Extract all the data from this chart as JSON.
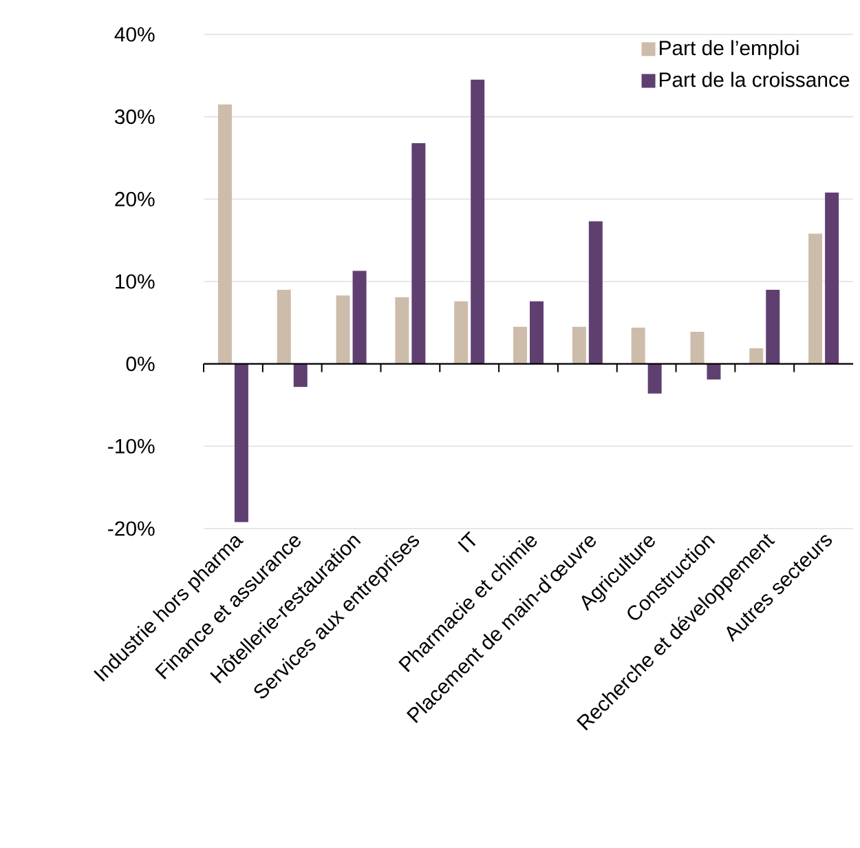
{
  "chart_data": {
    "type": "bar",
    "categories": [
      "Industrie hors pharma",
      "Finance et assurance",
      "Hôtellerie-restauration",
      "Services aux entreprises",
      "IT",
      "Pharmacie et chimie",
      "Placement de main-d’œuvre",
      "Agriculture",
      "Construction",
      "Recherche et développement",
      "Autres secteurs"
    ],
    "series": [
      {
        "name": "Part de l’emploi",
        "color": "#cdbcaa",
        "values": [
          31.5,
          9.0,
          8.3,
          8.1,
          7.6,
          4.5,
          4.5,
          4.4,
          3.9,
          1.9,
          15.8
        ]
      },
      {
        "name": "Part de la croissance",
        "color": "#5f3f70",
        "values": [
          -19.2,
          -2.8,
          11.3,
          26.8,
          34.5,
          7.6,
          17.3,
          -3.6,
          -1.9,
          9.0,
          20.8
        ]
      }
    ],
    "ylim": [
      -20,
      40
    ],
    "yticks": [
      {
        "value": -20,
        "label": "-20%"
      },
      {
        "value": -10,
        "label": "-10%"
      },
      {
        "value": 0,
        "label": "0%"
      },
      {
        "value": 10,
        "label": "10%"
      },
      {
        "value": 20,
        "label": "20%"
      },
      {
        "value": 30,
        "label": "30%"
      },
      {
        "value": 40,
        "label": "40%"
      }
    ],
    "grid": "y",
    "legend": "top right"
  }
}
